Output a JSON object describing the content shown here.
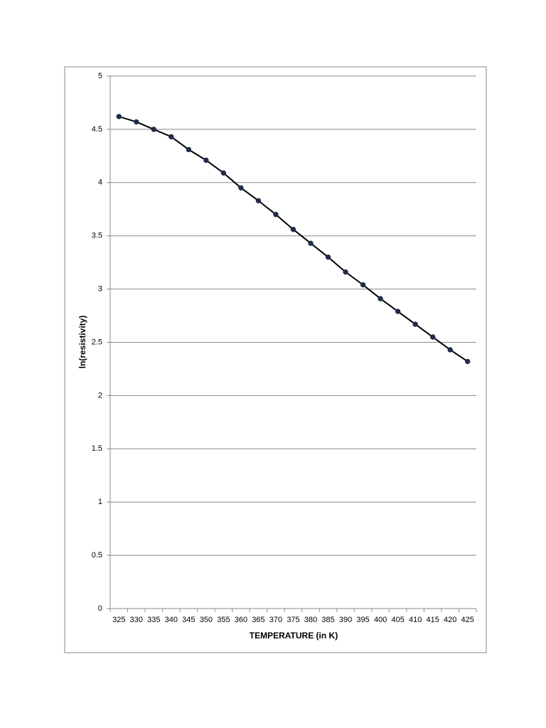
{
  "chart_data": {
    "type": "line",
    "x_label": "TEMPERATURE (in K)",
    "y_label": "ln(resistivity)",
    "categories": [
      "325",
      "330",
      "335",
      "340",
      "345",
      "350",
      "355",
      "360",
      "365",
      "370",
      "375",
      "380",
      "385",
      "390",
      "395",
      "400",
      "405",
      "410",
      "415",
      "420",
      "425"
    ],
    "series": [
      {
        "color": "#000000",
        "marker_color": "#1f2d4a",
        "values": [
          4.62,
          4.57,
          4.5,
          4.43,
          4.31,
          4.21,
          4.09,
          3.95,
          3.83,
          3.7,
          3.56,
          3.43,
          3.3,
          3.16,
          3.04,
          2.91,
          2.79,
          2.67,
          2.55,
          2.43,
          2.32
        ]
      }
    ],
    "ylim": [
      0,
      5
    ],
    "yticks": [
      0,
      0.5,
      1,
      1.5,
      2,
      2.5,
      3,
      3.5,
      4,
      4.5,
      5
    ],
    "grid": true
  }
}
